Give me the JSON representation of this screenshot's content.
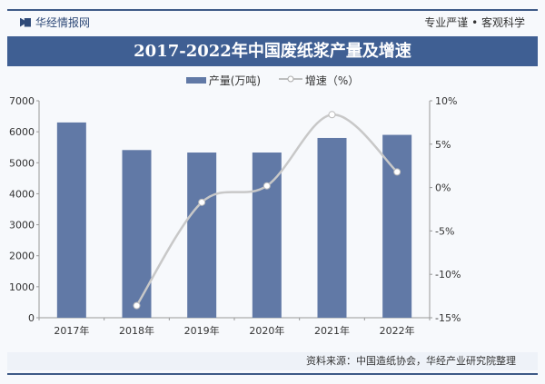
{
  "header": {
    "brand": "华经情报网",
    "slogan": "专业严谨 • 客观科学"
  },
  "footer": {
    "source": "资料来源：中国造纸协会，华经产业研究院整理"
  },
  "colors": {
    "bar": "#6179a6",
    "line": "#c8c8c8",
    "title_bg": "#3f5f93"
  },
  "chart_data": {
    "type": "bar+line",
    "title": "2017-2022年中国废纸浆产量及增速",
    "categories": [
      "2017年",
      "2018年",
      "2019年",
      "2020年",
      "2021年",
      "2022年"
    ],
    "series": [
      {
        "name": "产量(万吨)",
        "type": "bar",
        "axis": "left",
        "values": [
          6300,
          5410,
          5330,
          5330,
          5800,
          5900
        ]
      },
      {
        "name": "增速（%）",
        "type": "line",
        "axis": "right",
        "values": [
          null,
          -13.6,
          -1.7,
          0.2,
          8.4,
          1.8
        ]
      }
    ],
    "left_axis": {
      "ylim": [
        0,
        7000
      ],
      "ticks": [
        "0",
        "1000",
        "2000",
        "3000",
        "4000",
        "5000",
        "6000",
        "7000"
      ]
    },
    "right_axis": {
      "ylim": [
        -15,
        10
      ],
      "ticks": [
        "-15%",
        "-10%",
        "-5%",
        "0%",
        "5%",
        "10%"
      ]
    },
    "legend": "top-center",
    "grid": false
  }
}
